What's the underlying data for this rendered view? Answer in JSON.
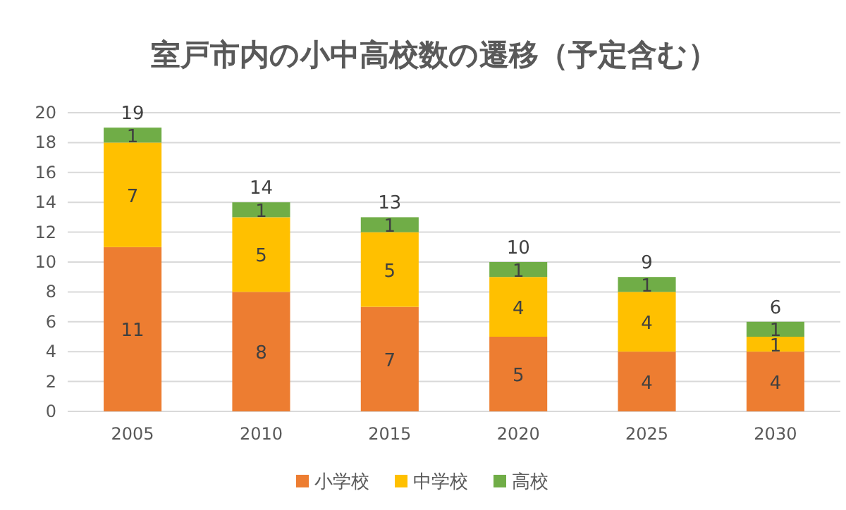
{
  "chart_data": {
    "type": "bar",
    "title": "室戸市内の小中高校数の遷移（予定含む）",
    "categories": [
      "2005",
      "2010",
      "2015",
      "2020",
      "2025",
      "2030"
    ],
    "stacked": true,
    "series": [
      {
        "name": "小学校",
        "color": "#ed7d31",
        "values": [
          11,
          8,
          7,
          5,
          4,
          4
        ]
      },
      {
        "name": "中学校",
        "color": "#ffc000",
        "values": [
          7,
          5,
          5,
          4,
          4,
          1
        ]
      },
      {
        "name": "高校",
        "color": "#70ad47",
        "values": [
          1,
          1,
          1,
          1,
          1,
          1
        ]
      }
    ],
    "data_labels": true,
    "totals": [
      "19",
      "14",
      "13",
      "10",
      "9",
      "6"
    ],
    "ylim": [
      0,
      20
    ],
    "yticks": [
      0,
      2,
      4,
      6,
      8,
      10,
      12,
      14,
      16,
      18,
      20
    ],
    "grid": "y",
    "legend": "bottom"
  }
}
